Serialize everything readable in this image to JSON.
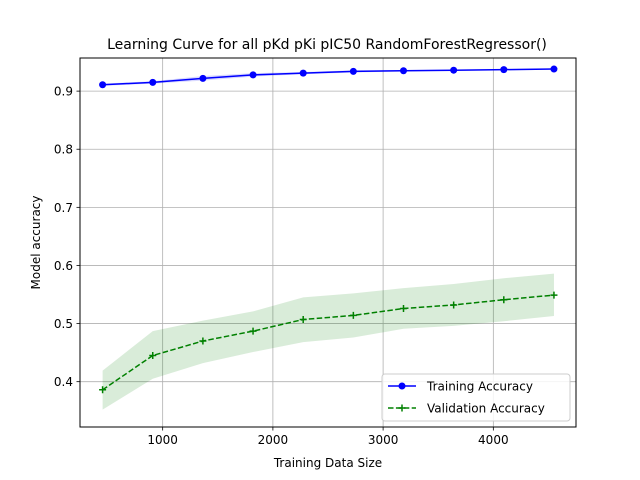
{
  "chart_data": {
    "type": "line",
    "title": "Learning Curve for all pKd pKi pIC50 RandomForestRegressor()",
    "xlabel": "Training Data Size",
    "ylabel": "Model accuracy",
    "xlim": [
      250,
      4750
    ],
    "ylim": [
      0.322,
      0.957
    ],
    "xticks": [
      1000,
      2000,
      3000,
      4000
    ],
    "xtick_labels": [
      "1000",
      "2000",
      "3000",
      "4000"
    ],
    "yticks": [
      0.4,
      0.5,
      0.6,
      0.7,
      0.8,
      0.9
    ],
    "ytick_labels": [
      "0.4",
      "0.5",
      "0.6",
      "0.7",
      "0.8",
      "0.9"
    ],
    "grid": true,
    "legend_position": "lower-right",
    "x": [
      455,
      910,
      1365,
      1820,
      2275,
      2730,
      3185,
      3640,
      4095,
      4550
    ],
    "series": [
      {
        "name": "Training Accuracy",
        "color": "#0000ff",
        "band_color": "#0000ff",
        "linestyle": "solid",
        "marker": "circle",
        "values": [
          0.911,
          0.915,
          0.922,
          0.928,
          0.931,
          0.934,
          0.935,
          0.936,
          0.937,
          0.938
        ],
        "band_lower": [
          0.909,
          0.913,
          0.918,
          0.925,
          0.929,
          0.932,
          0.934,
          0.935,
          0.936,
          0.937
        ],
        "band_upper": [
          0.913,
          0.917,
          0.926,
          0.931,
          0.933,
          0.936,
          0.936,
          0.937,
          0.938,
          0.939
        ]
      },
      {
        "name": "Validation Accuracy",
        "color": "#008000",
        "band_color": "#008000",
        "linestyle": "dashed",
        "marker": "plus",
        "values": [
          0.386,
          0.445,
          0.47,
          0.487,
          0.507,
          0.514,
          0.526,
          0.532,
          0.541,
          0.549
        ],
        "band_lower": [
          0.352,
          0.405,
          0.432,
          0.451,
          0.468,
          0.476,
          0.491,
          0.496,
          0.504,
          0.513
        ],
        "band_upper": [
          0.419,
          0.487,
          0.505,
          0.521,
          0.545,
          0.552,
          0.561,
          0.568,
          0.578,
          0.586
        ]
      }
    ]
  }
}
